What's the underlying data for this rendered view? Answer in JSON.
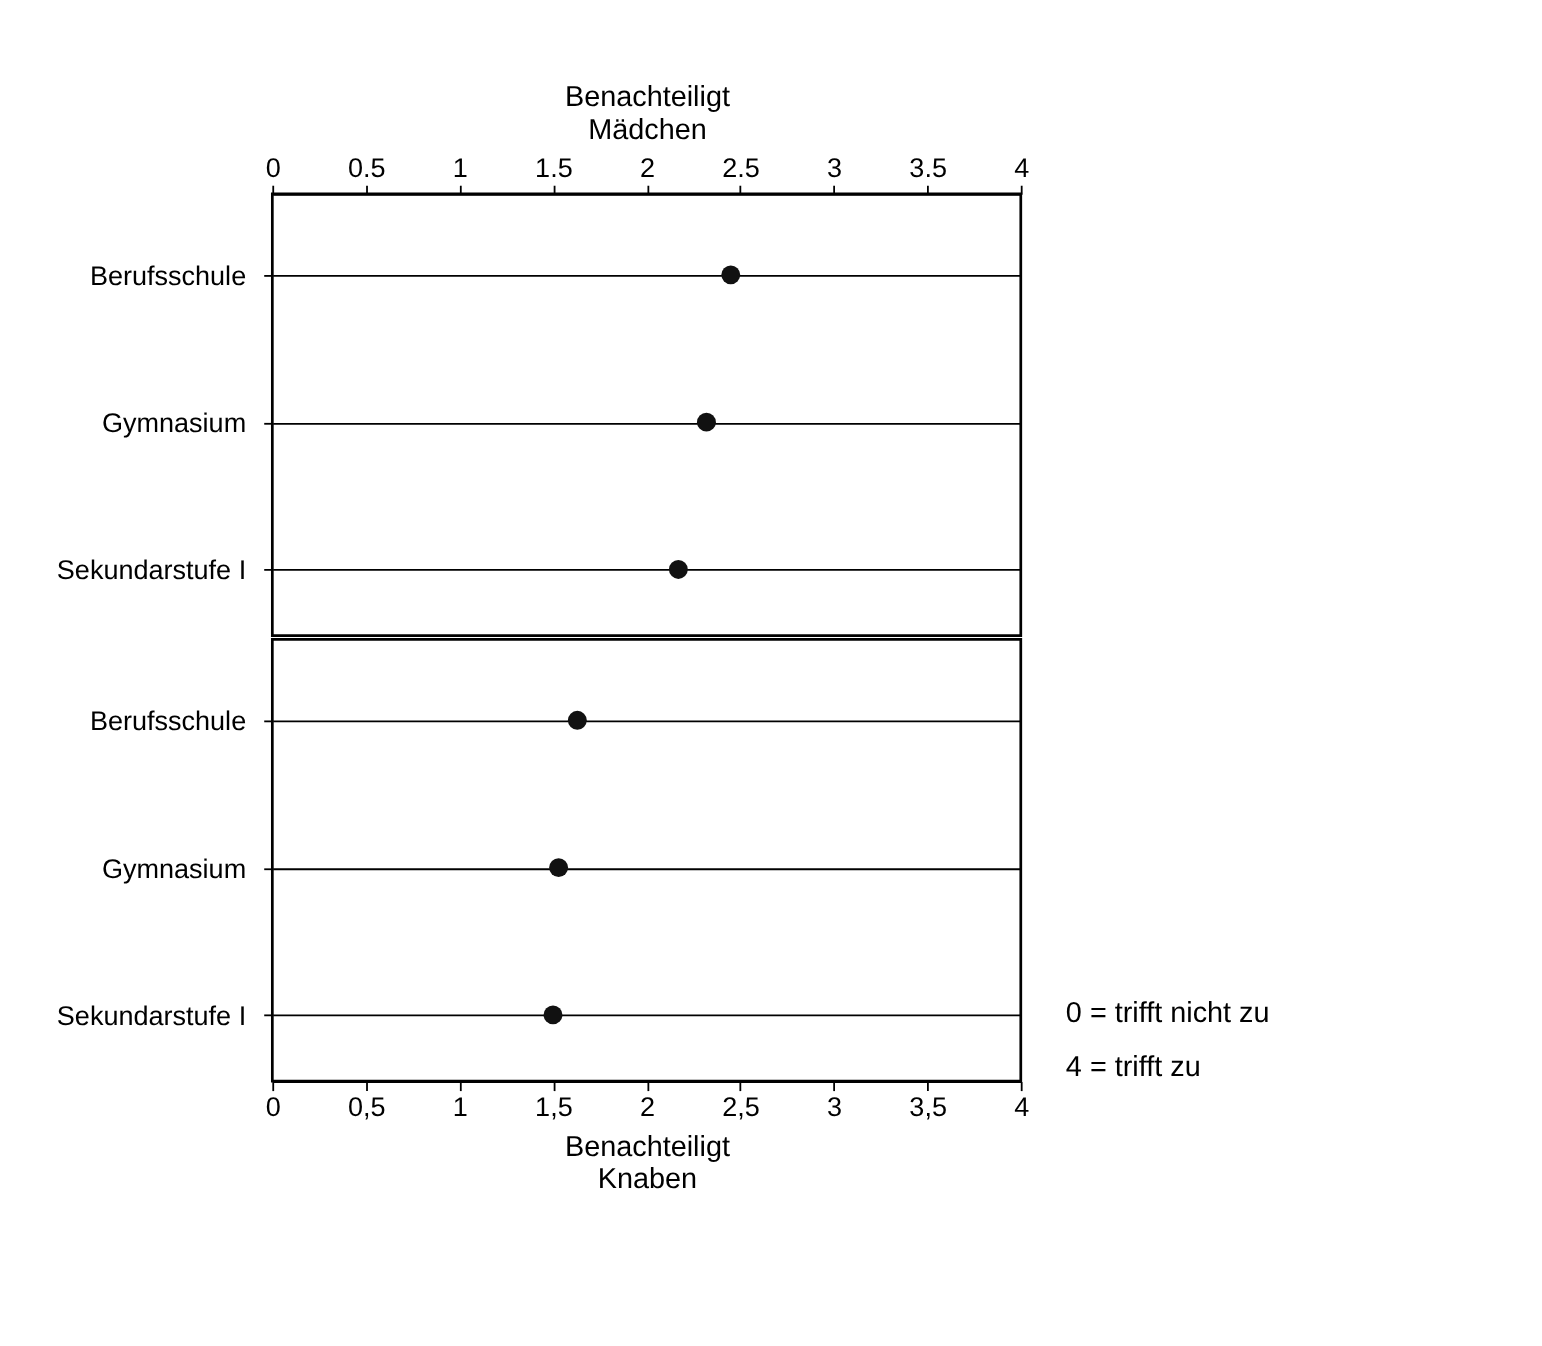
{
  "chart_data": [
    {
      "type": "scatter",
      "orientation": "horizontal",
      "xlabel": "Benachteiligt\nMädchen",
      "categories": [
        "Berufsschule",
        "Gymnasium",
        "Sekundarstufe I"
      ],
      "values": [
        2.45,
        2.32,
        2.17
      ],
      "color": "#111111",
      "marker": "circle",
      "grid": "y",
      "xlim": [
        0,
        4
      ],
      "xticks": [
        0,
        0.5,
        1,
        1.5,
        2,
        2.5,
        3,
        3.5,
        4
      ]
    },
    {
      "type": "scatter",
      "orientation": "horizontal",
      "xlabel": "Benachteiligt\nKnaben",
      "categories": [
        "Berufsschule",
        "Gymnasium",
        "Sekundarstufe I"
      ],
      "values": [
        1.63,
        1.53,
        1.5
      ],
      "color": "#111111",
      "marker": "circle",
      "grid": "y",
      "xlim": [
        0,
        4
      ],
      "xticks": [
        0,
        {
          "value": 0.5,
          "label": "0,5"
        },
        1,
        {
          "value": 1.5,
          "label": "1,5"
        },
        2,
        {
          "value": 2.5,
          "label": "2,5"
        },
        3,
        {
          "value": 3.5,
          "label": "3,5"
        },
        4
      ],
      "annotations": [
        "0 = trifft nicht zu",
        "4 = trifft zu"
      ]
    }
  ]
}
